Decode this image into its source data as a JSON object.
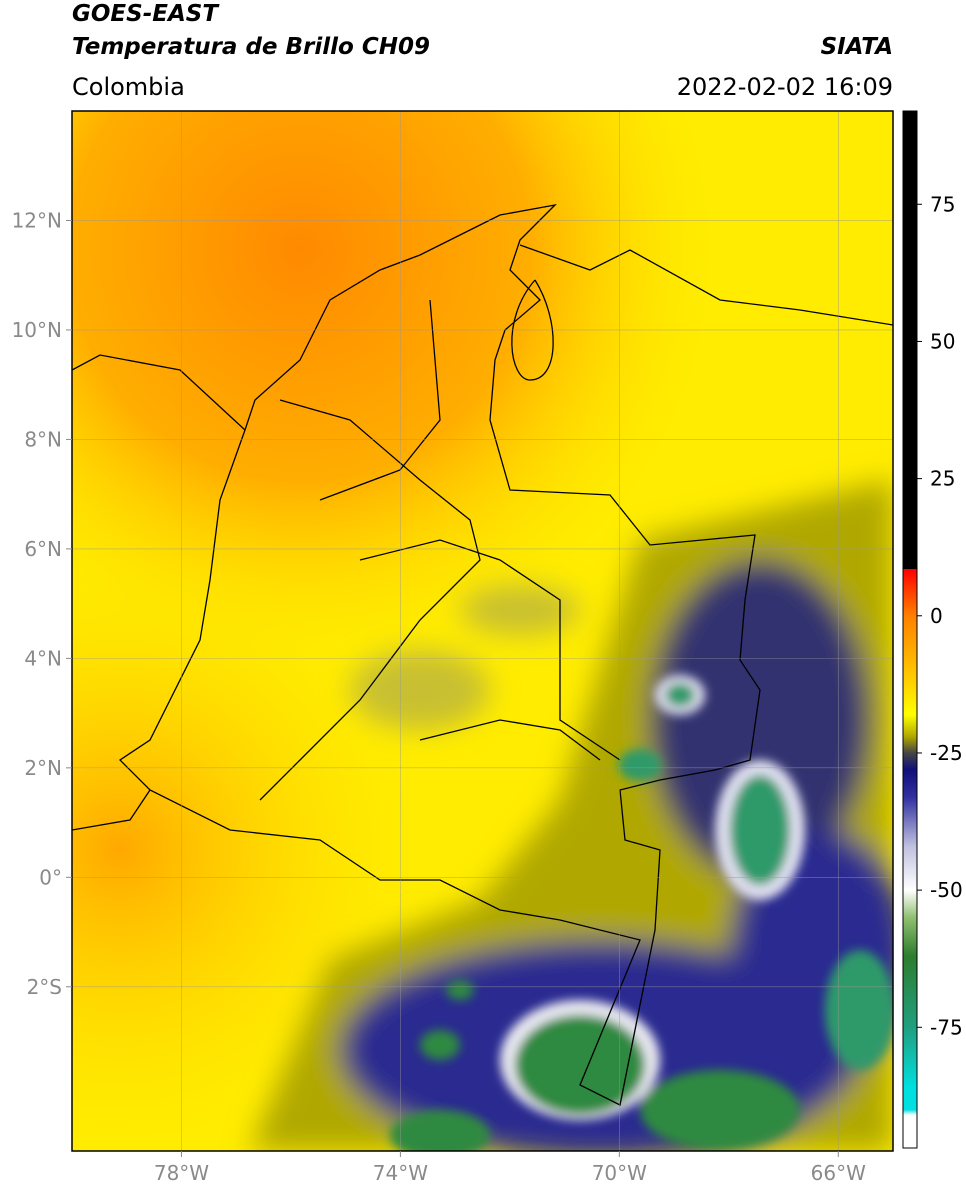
{
  "header": {
    "title": "GOES-EAST",
    "subtitle": "Temperatura de Brillo CH09",
    "region": "Colombia",
    "source": "SIATA",
    "datetime": "2022-02-02 16:09"
  },
  "map": {
    "xlim": [
      -80,
      -65
    ],
    "ylim": [
      -5,
      14
    ],
    "xticks": [
      {
        "value": -78,
        "label": "78°W"
      },
      {
        "value": -74,
        "label": "74°W"
      },
      {
        "value": -70,
        "label": "70°W"
      },
      {
        "value": -66,
        "label": "66°W"
      }
    ],
    "yticks": [
      {
        "value": 12,
        "label": "12°N"
      },
      {
        "value": 10,
        "label": "10°N"
      },
      {
        "value": 8,
        "label": "8°N"
      },
      {
        "value": 6,
        "label": "6°N"
      },
      {
        "value": 4,
        "label": "4°N"
      },
      {
        "value": 2,
        "label": "2°N"
      },
      {
        "value": 0,
        "label": "0°"
      },
      {
        "value": -2,
        "label": "2°S"
      }
    ],
    "grid": true
  },
  "colorbar": {
    "lim": [
      -97,
      92
    ],
    "ticks": [
      75,
      50,
      25,
      0,
      -25,
      -50,
      -75
    ],
    "colormap": [
      {
        "value": 92,
        "color": "#000000"
      },
      {
        "value": 8.5,
        "color": "#000000"
      },
      {
        "value": 8.5,
        "color": "#ff0000"
      },
      {
        "value": 0,
        "color": "#ff8000"
      },
      {
        "value": -12,
        "color": "#ffd000"
      },
      {
        "value": -18,
        "color": "#ffff00"
      },
      {
        "value": -22,
        "color": "#b0a800"
      },
      {
        "value": -25,
        "color": "#454545"
      },
      {
        "value": -28,
        "color": "#10107a"
      },
      {
        "value": -33,
        "color": "#3030a0"
      },
      {
        "value": -42,
        "color": "#c0c0e0"
      },
      {
        "value": -50,
        "color": "#ffffff"
      },
      {
        "value": -55,
        "color": "#90c070"
      },
      {
        "value": -62,
        "color": "#2e7d2e"
      },
      {
        "value": -75,
        "color": "#20a080"
      },
      {
        "value": -86,
        "color": "#00e0e0"
      },
      {
        "value": -90,
        "color": "#00e0e0"
      },
      {
        "value": -91,
        "color": "#ffffff"
      },
      {
        "value": -97,
        "color": "#ffffff"
      }
    ]
  }
}
